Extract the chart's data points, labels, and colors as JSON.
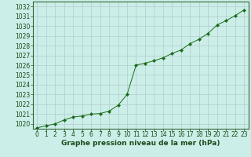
{
  "x": [
    0,
    1,
    2,
    3,
    4,
    5,
    6,
    7,
    8,
    9,
    10,
    11,
    12,
    13,
    14,
    15,
    16,
    17,
    18,
    19,
    20,
    21,
    22,
    23
  ],
  "y": [
    1019.6,
    1019.8,
    1020.0,
    1020.4,
    1020.7,
    1020.8,
    1021.0,
    1021.05,
    1021.3,
    1021.9,
    1023.0,
    1026.0,
    1026.2,
    1026.45,
    1026.75,
    1027.2,
    1027.55,
    1028.2,
    1028.65,
    1029.25,
    1030.1,
    1030.55,
    1031.05,
    1031.65
  ],
  "ylim_min": 1019.5,
  "ylim_max": 1032.5,
  "yticks": [
    1020,
    1021,
    1022,
    1023,
    1024,
    1025,
    1026,
    1027,
    1028,
    1029,
    1030,
    1031,
    1032
  ],
  "xticks": [
    0,
    1,
    2,
    3,
    4,
    5,
    6,
    7,
    8,
    9,
    10,
    11,
    12,
    13,
    14,
    15,
    16,
    17,
    18,
    19,
    20,
    21,
    22,
    23
  ],
  "xlabel": "Graphe pression niveau de la mer (hPa)",
  "line_color": "#1a6b1a",
  "marker": "D",
  "marker_size": 2.2,
  "bg_color": "#cceee8",
  "grid_color": "#b0cccc",
  "tick_fontsize": 5.5,
  "xlabel_fontsize": 6.5,
  "linewidth": 0.7
}
